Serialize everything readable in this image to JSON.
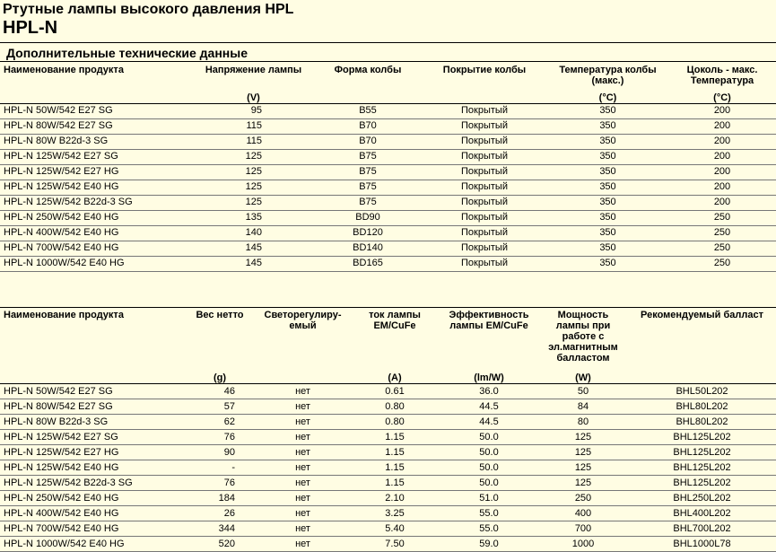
{
  "header": {
    "title": "Ртутные лампы высокого давления HPL",
    "subtitle": "HPL-N"
  },
  "section_title": "Дополнительные технические данные",
  "table1": {
    "columns": [
      {
        "label": "Наименование продукта"
      },
      {
        "label": "Напряжение лампы",
        "unit": "(V)"
      },
      {
        "label": "Форма колбы"
      },
      {
        "label": "Покрытие колбы"
      },
      {
        "label": "Температура колбы\n(макс.)",
        "unit": "(°C)"
      },
      {
        "label": "Цоколь - макс.\nТемпература",
        "unit": "(°C)"
      }
    ],
    "rows": [
      [
        "HPL-N 50W/542 E27 SG",
        "95",
        "B55",
        "Покрытый",
        "350",
        "200"
      ],
      [
        "HPL-N 80W/542 E27 SG",
        "115",
        "B70",
        "Покрытый",
        "350",
        "200"
      ],
      [
        "HPL-N 80W B22d-3 SG",
        "115",
        "B70",
        "Покрытый",
        "350",
        "200"
      ],
      [
        "HPL-N 125W/542 E27 SG",
        "125",
        "B75",
        "Покрытый",
        "350",
        "200"
      ],
      [
        "HPL-N 125W/542 E27 HG",
        "125",
        "B75",
        "Покрытый",
        "350",
        "200"
      ],
      [
        "HPL-N 125W/542 E40 HG",
        "125",
        "B75",
        "Покрытый",
        "350",
        "200"
      ],
      [
        "HPL-N 125W/542 B22d-3 SG",
        "125",
        "B75",
        "Покрытый",
        "350",
        "200"
      ],
      [
        "HPL-N 250W/542 E40 HG",
        "135",
        "BD90",
        "Покрытый",
        "350",
        "250"
      ],
      [
        "HPL-N 400W/542 E40 HG",
        "140",
        "BD120",
        "Покрытый",
        "350",
        "250"
      ],
      [
        "HPL-N 700W/542 E40 HG",
        "145",
        "BD140",
        "Покрытый",
        "350",
        "250"
      ],
      [
        "HPL-N 1000W/542 E40 HG",
        "145",
        "BD165",
        "Покрытый",
        "350",
        "250"
      ]
    ]
  },
  "table2": {
    "columns": [
      {
        "label": "Наименование продукта"
      },
      {
        "label": "Вес нетто",
        "unit": "(g)"
      },
      {
        "label": "Светорегулиру-\nемый"
      },
      {
        "label": "ток лампы\nEM/CuFe",
        "unit": "(A)"
      },
      {
        "label": "Эффективность\nлампы EM/CuFe",
        "unit": "(lm/W)"
      },
      {
        "label": "Мощность\nлампы при\nработе с\nэл.магнитным\nбалластом",
        "unit": "(W)"
      },
      {
        "label": "Рекомендуемый балласт"
      }
    ],
    "rows": [
      [
        "HPL-N 50W/542 E27 SG",
        "46",
        "нет",
        "0.61",
        "36.0",
        "50",
        "BHL50L202"
      ],
      [
        "HPL-N 80W/542 E27 SG",
        "57",
        "нет",
        "0.80",
        "44.5",
        "84",
        "BHL80L202"
      ],
      [
        "HPL-N 80W B22d-3 SG",
        "62",
        "нет",
        "0.80",
        "44.5",
        "80",
        "BHL80L202"
      ],
      [
        "HPL-N 125W/542 E27 SG",
        "76",
        "нет",
        "1.15",
        "50.0",
        "125",
        "BHL125L202"
      ],
      [
        "HPL-N 125W/542 E27 HG",
        "90",
        "нет",
        "1.15",
        "50.0",
        "125",
        "BHL125L202"
      ],
      [
        "HPL-N 125W/542 E40 HG",
        "-",
        "нет",
        "1.15",
        "50.0",
        "125",
        "BHL125L202"
      ],
      [
        "HPL-N 125W/542 B22d-3 SG",
        "76",
        "нет",
        "1.15",
        "50.0",
        "125",
        "BHL125L202"
      ],
      [
        "HPL-N 250W/542 E40 HG",
        "184",
        "нет",
        "2.10",
        "51.0",
        "250",
        "BHL250L202"
      ],
      [
        "HPL-N 400W/542 E40 HG",
        "26",
        "нет",
        "3.25",
        "55.0",
        "400",
        "BHL400L202"
      ],
      [
        "HPL-N 700W/542 E40 HG",
        "344",
        "нет",
        "5.40",
        "55.0",
        "700",
        "BHL700L202"
      ],
      [
        "HPL-N 1000W/542 E40 HG",
        "520",
        "нет",
        "7.50",
        "59.0",
        "1000",
        "BHL1000L78"
      ]
    ]
  }
}
